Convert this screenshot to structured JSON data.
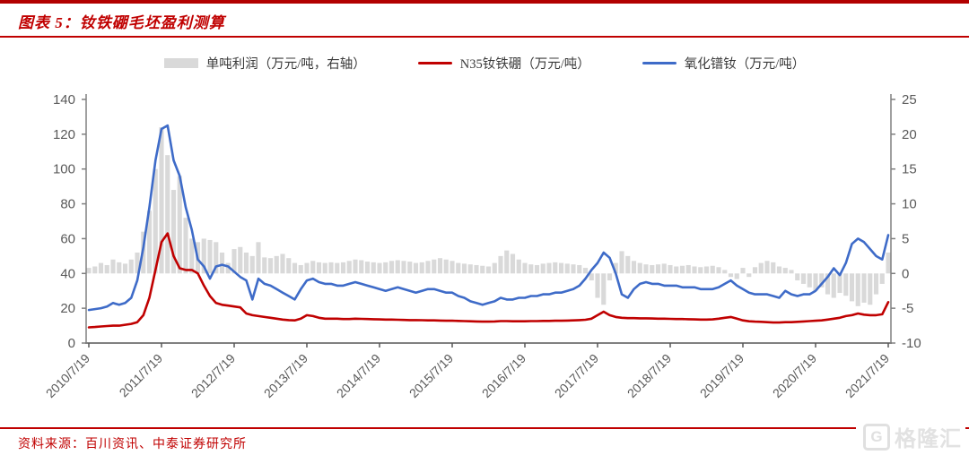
{
  "page": {
    "title": "图表 5：钕铁硼毛坯盈利测算",
    "source": "资料来源：百川资讯、中泰证券研究所",
    "watermark_g": "G",
    "watermark": "格隆汇",
    "accent_red": "#c00000"
  },
  "legend": [
    {
      "label": "单吨利润（万元/吨，右轴）",
      "type": "bar",
      "color": "#d9d9d9"
    },
    {
      "label": "N35钕铁硼（万元/吨）",
      "type": "line",
      "color": "#c00000"
    },
    {
      "label": "氧化镨钕（万元/吨）",
      "type": "line",
      "color": "#3e6bc8"
    }
  ],
  "chart_data": {
    "type": "bar+line combo, monthly readings 2010/07 - 2021/07",
    "grid": false,
    "legend_position": "top",
    "left_axis": {
      "min": 0,
      "max": 140,
      "step": 20,
      "ticks": [
        0,
        20,
        40,
        60,
        80,
        100,
        120,
        140
      ]
    },
    "right_axis": {
      "min": -10,
      "max": 25,
      "step": 5,
      "ticks": [
        -10,
        -5,
        0,
        5,
        10,
        15,
        20,
        25
      ]
    },
    "x_tick_labels": [
      "2010/7/19",
      "2011/7/19",
      "2012/7/19",
      "2013/7/19",
      "2014/7/19",
      "2015/7/19",
      "2016/7/19",
      "2017/7/19",
      "2018/7/19",
      "2019/7/19",
      "2020/7/19",
      "2021/7/19"
    ],
    "dates": [
      "2010/07",
      "2010/08",
      "2010/09",
      "2010/10",
      "2010/11",
      "2010/12",
      "2011/01",
      "2011/02",
      "2011/03",
      "2011/04",
      "2011/05",
      "2011/06",
      "2011/07",
      "2011/08",
      "2011/09",
      "2011/10",
      "2011/11",
      "2011/12",
      "2012/01",
      "2012/02",
      "2012/03",
      "2012/04",
      "2012/05",
      "2012/06",
      "2012/07",
      "2012/08",
      "2012/09",
      "2012/10",
      "2012/11",
      "2012/12",
      "2013/01",
      "2013/02",
      "2013/03",
      "2013/04",
      "2013/05",
      "2013/06",
      "2013/07",
      "2013/08",
      "2013/09",
      "2013/10",
      "2013/11",
      "2013/12",
      "2014/01",
      "2014/02",
      "2014/03",
      "2014/04",
      "2014/05",
      "2014/06",
      "2014/07",
      "2014/08",
      "2014/09",
      "2014/10",
      "2014/11",
      "2014/12",
      "2015/01",
      "2015/02",
      "2015/03",
      "2015/04",
      "2015/05",
      "2015/06",
      "2015/07",
      "2015/08",
      "2015/09",
      "2015/10",
      "2015/11",
      "2015/12",
      "2016/01",
      "2016/02",
      "2016/03",
      "2016/04",
      "2016/05",
      "2016/06",
      "2016/07",
      "2016/08",
      "2016/09",
      "2016/10",
      "2016/11",
      "2016/12",
      "2017/01",
      "2017/02",
      "2017/03",
      "2017/04",
      "2017/05",
      "2017/06",
      "2017/07",
      "2017/08",
      "2017/09",
      "2017/10",
      "2017/11",
      "2017/12",
      "2018/01",
      "2018/02",
      "2018/03",
      "2018/04",
      "2018/05",
      "2018/06",
      "2018/07",
      "2018/08",
      "2018/09",
      "2018/10",
      "2018/11",
      "2018/12",
      "2019/01",
      "2019/02",
      "2019/03",
      "2019/04",
      "2019/05",
      "2019/06",
      "2019/07",
      "2019/08",
      "2019/09",
      "2019/10",
      "2019/11",
      "2019/12",
      "2020/01",
      "2020/02",
      "2020/03",
      "2020/04",
      "2020/05",
      "2020/06",
      "2020/07",
      "2020/08",
      "2020/09",
      "2020/10",
      "2020/11",
      "2020/12",
      "2021/01",
      "2021/02",
      "2021/03",
      "2021/04",
      "2021/05",
      "2021/06",
      "2021/07"
    ],
    "series": [
      {
        "name": "单吨利润（万元/吨，右轴）",
        "type": "bar",
        "axis": "right",
        "color": "#d9d9d9",
        "values": [
          0.8,
          1.0,
          1.5,
          1.2,
          2.0,
          1.6,
          1.4,
          2.0,
          3.0,
          6.0,
          9.0,
          15.0,
          21.0,
          17.0,
          12.0,
          14.0,
          8.0,
          5.0,
          4.5,
          5.0,
          4.8,
          4.5,
          3.0,
          1.5,
          3.5,
          3.8,
          3.0,
          2.5,
          4.5,
          2.3,
          2.2,
          2.5,
          2.8,
          2.2,
          1.5,
          1.2,
          1.5,
          1.8,
          1.6,
          1.5,
          1.6,
          1.5,
          1.6,
          1.8,
          2.0,
          1.9,
          1.7,
          1.6,
          1.5,
          1.6,
          1.8,
          1.9,
          1.8,
          1.7,
          1.5,
          1.6,
          1.8,
          2.0,
          2.2,
          2.0,
          1.8,
          1.5,
          1.4,
          1.3,
          1.2,
          1.1,
          1.0,
          1.5,
          2.5,
          3.3,
          2.8,
          2.0,
          1.5,
          1.3,
          1.2,
          1.4,
          1.5,
          1.6,
          1.5,
          1.4,
          1.3,
          1.2,
          0.8,
          -1.0,
          -3.5,
          -4.5,
          -1.0,
          1.5,
          3.2,
          2.5,
          1.8,
          1.5,
          1.3,
          1.2,
          1.3,
          1.4,
          1.2,
          1.0,
          1.1,
          1.2,
          1.0,
          0.9,
          1.0,
          1.1,
          0.9,
          0.5,
          -0.5,
          -0.8,
          0.8,
          -0.5,
          0.9,
          1.5,
          1.8,
          1.6,
          1.0,
          0.8,
          0.5,
          -1.0,
          -1.5,
          -2.0,
          -2.5,
          -2.0,
          -3.0,
          -3.5,
          -2.8,
          -3.2,
          -4.0,
          -4.7,
          -4.2,
          -4.5,
          -3.0,
          -1.5,
          3.0
        ]
      },
      {
        "name": "N35钕铁硼（万元/吨）",
        "type": "line",
        "axis": "left",
        "color": "#c00000",
        "values": [
          9,
          9.2,
          9.5,
          9.8,
          10,
          10,
          10.5,
          11,
          12,
          16,
          26,
          42,
          58,
          63,
          50,
          43,
          42,
          42,
          40,
          33,
          27,
          23,
          22,
          21.5,
          21,
          20.5,
          17,
          16,
          15.5,
          15,
          14.5,
          14,
          13.5,
          13.2,
          13,
          14,
          16,
          15.5,
          14.5,
          14,
          14,
          14,
          13.8,
          13.8,
          14,
          13.9,
          13.8,
          13.7,
          13.6,
          13.5,
          13.5,
          13.4,
          13.3,
          13.2,
          13.2,
          13.1,
          13,
          13,
          12.9,
          12.8,
          12.8,
          12.7,
          12.6,
          12.5,
          12.4,
          12.3,
          12.3,
          12.4,
          12.6,
          12.6,
          12.5,
          12.5,
          12.5,
          12.6,
          12.6,
          12.7,
          12.7,
          12.8,
          12.8,
          12.9,
          13,
          13.2,
          13.4,
          14,
          16,
          18,
          16,
          15,
          14.5,
          14.3,
          14.3,
          14.2,
          14.2,
          14.1,
          14,
          14,
          13.9,
          13.8,
          13.8,
          13.7,
          13.6,
          13.5,
          13.5,
          13.6,
          14,
          14.5,
          15,
          14,
          13,
          12.5,
          12.3,
          12.2,
          12,
          11.8,
          11.8,
          12,
          12,
          12.2,
          12.4,
          12.6,
          12.8,
          13,
          13.5,
          14,
          14.5,
          15.5,
          16,
          17,
          16.3,
          16,
          16,
          16.5,
          23.5
        ]
      },
      {
        "name": "氧化镨钕（万元/吨）",
        "type": "line",
        "axis": "left",
        "color": "#3e6bc8",
        "values": [
          19,
          19.5,
          20,
          21,
          23,
          22,
          23,
          26,
          36,
          55,
          78,
          105,
          123,
          125,
          105,
          96,
          78,
          65,
          48,
          44,
          37,
          44,
          45,
          44,
          41,
          38,
          36,
          25,
          37,
          34,
          33,
          31,
          29,
          27,
          25,
          31,
          36,
          37,
          35,
          34,
          34,
          33,
          33,
          34,
          35,
          34,
          33,
          32,
          31,
          30,
          31,
          32,
          31,
          30,
          29,
          30,
          31,
          31,
          30,
          29,
          29,
          27,
          26,
          24,
          23,
          22,
          23,
          24,
          26,
          25,
          25,
          26,
          26,
          27,
          27,
          28,
          28,
          29,
          29,
          30,
          31,
          33,
          37,
          42,
          46,
          52,
          49,
          40,
          28,
          26,
          31,
          34,
          35,
          34,
          34,
          33,
          33,
          33,
          32,
          32,
          32,
          31,
          31,
          31,
          32,
          34,
          36,
          33,
          31,
          29,
          28,
          28,
          28,
          27,
          26,
          30,
          28,
          27,
          28,
          28,
          30,
          34,
          38,
          43,
          39,
          46,
          57,
          60,
          58,
          54,
          50,
          48,
          62
        ]
      }
    ]
  }
}
